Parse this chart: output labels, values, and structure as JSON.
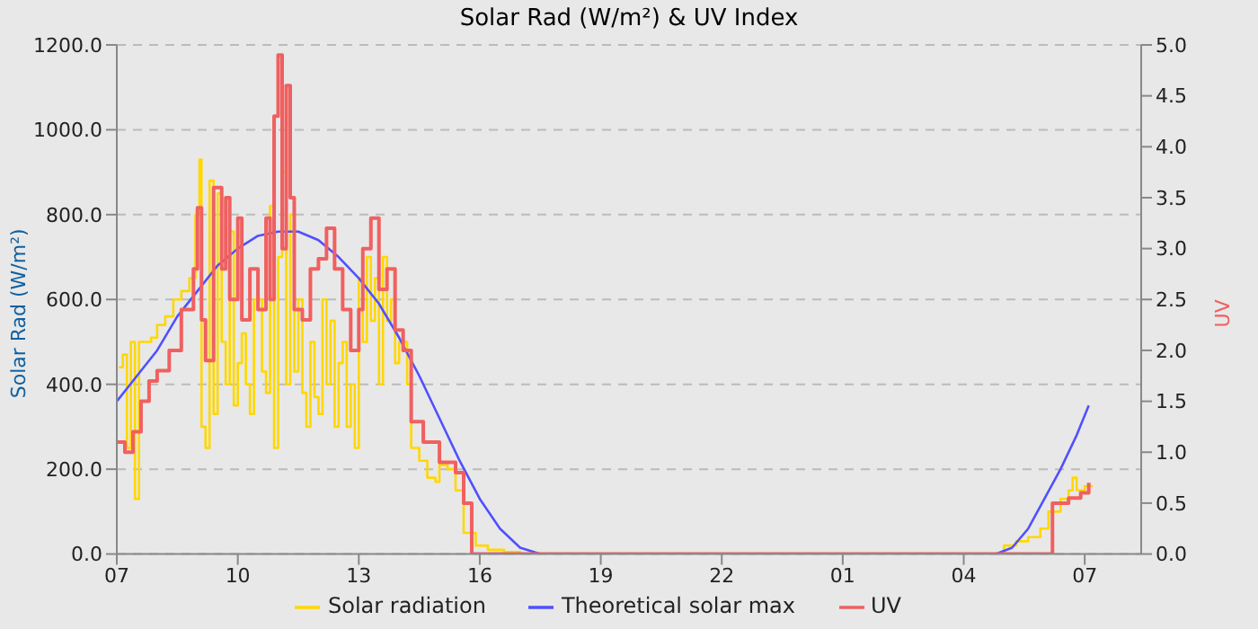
{
  "chart_data": {
    "type": "line",
    "title": "Solar Rad (W/m²) &  UV Index",
    "ylabel": "Solar Rad (W/m²)",
    "y2label": "UV",
    "xlim": [
      "--01-01T07:00",
      "--01-02T08:24"
    ],
    "xticks": [
      {
        "value": "--01-01T07:00",
        "label": "07"
      },
      {
        "value": "--01-01T10:00",
        "label": "10"
      },
      {
        "value": "--01-01T13:00",
        "label": "13"
      },
      {
        "value": "--01-01T16:00",
        "label": "16"
      },
      {
        "value": "--01-01T19:00",
        "label": "19"
      },
      {
        "value": "--01-01T22:00",
        "label": "22"
      },
      {
        "value": "--01-02T01:00",
        "label": "01"
      },
      {
        "value": "--01-02T04:00",
        "label": "04"
      },
      {
        "value": "--01-02T07:00",
        "label": "07"
      }
    ],
    "ylim": [
      0,
      1200
    ],
    "yticks": [
      {
        "value": 0,
        "label": "0.0"
      },
      {
        "value": 200,
        "label": "200.0"
      },
      {
        "value": 400,
        "label": "400.0"
      },
      {
        "value": 600,
        "label": "600.0"
      },
      {
        "value": 800,
        "label": "800.0"
      },
      {
        "value": 1000,
        "label": "1000.0"
      },
      {
        "value": 1200,
        "label": "1200.0"
      }
    ],
    "y2lim": [
      0,
      5
    ],
    "y2ticks": [
      {
        "value": 0,
        "label": "0.0"
      },
      {
        "value": 0.5,
        "label": "0.5"
      },
      {
        "value": 1,
        "label": "1.0"
      },
      {
        "value": 1.5,
        "label": "1.5"
      },
      {
        "value": 2,
        "label": "2.0"
      },
      {
        "value": 2.5,
        "label": "2.5"
      },
      {
        "value": 3,
        "label": "3.0"
      },
      {
        "value": 3.5,
        "label": "3.5"
      },
      {
        "value": 4,
        "label": "4.0"
      },
      {
        "value": 4.5,
        "label": "4.5"
      },
      {
        "value": 5,
        "label": "5.0"
      }
    ],
    "grid": true,
    "legend": "bottom",
    "marker": "none",
    "series": [
      {
        "name": "Solar radiation",
        "type": "step",
        "color": "#ffd700",
        "x": [
          "--01-01T07:03",
          "--01-01T07:09",
          "--01-01T07:15",
          "--01-01T07:21",
          "--01-01T07:27",
          "--01-01T07:33",
          "--01-01T07:42",
          "--01-01T07:51",
          "--01-01T08:00",
          "--01-01T08:12",
          "--01-01T08:24",
          "--01-01T08:36",
          "--01-01T08:48",
          "--01-01T08:57",
          "--01-01T09:03",
          "--01-01T09:06",
          "--01-01T09:12",
          "--01-01T09:18",
          "--01-01T09:24",
          "--01-01T09:30",
          "--01-01T09:36",
          "--01-01T09:42",
          "--01-01T09:48",
          "--01-01T09:54",
          "--01-01T10:00",
          "--01-01T10:06",
          "--01-01T10:12",
          "--01-01T10:18",
          "--01-01T10:24",
          "--01-01T10:30",
          "--01-01T10:36",
          "--01-01T10:42",
          "--01-01T10:48",
          "--01-01T10:54",
          "--01-01T11:00",
          "--01-01T11:06",
          "--01-01T11:12",
          "--01-01T11:18",
          "--01-01T11:24",
          "--01-01T11:30",
          "--01-01T11:36",
          "--01-01T11:42",
          "--01-01T11:48",
          "--01-01T11:54",
          "--01-01T12:00",
          "--01-01T12:06",
          "--01-01T12:12",
          "--01-01T12:18",
          "--01-01T12:24",
          "--01-01T12:30",
          "--01-01T12:36",
          "--01-01T12:42",
          "--01-01T12:48",
          "--01-01T12:54",
          "--01-01T13:00",
          "--01-01T13:06",
          "--01-01T13:12",
          "--01-01T13:18",
          "--01-01T13:24",
          "--01-01T13:30",
          "--01-01T13:36",
          "--01-01T13:42",
          "--01-01T13:48",
          "--01-01T13:54",
          "--01-01T14:00",
          "--01-01T14:12",
          "--01-01T14:18",
          "--01-01T14:30",
          "--01-01T14:42",
          "--01-01T14:54",
          "--01-01T15:00",
          "--01-01T15:12",
          "--01-01T15:24",
          "--01-01T15:36",
          "--01-01T15:54",
          "--01-01T16:12",
          "--01-01T16:36",
          "--01-01T17:00",
          "--01-02T04:48",
          "--01-02T05:00",
          "--01-02T05:18",
          "--01-02T05:36",
          "--01-02T05:54",
          "--01-02T06:06",
          "--01-02T06:24",
          "--01-02T06:36",
          "--01-02T06:42",
          "--01-02T06:48",
          "--01-02T07:00",
          "--01-02T07:12"
        ],
        "values": [
          440,
          470,
          250,
          500,
          130,
          500,
          500,
          510,
          540,
          560,
          600,
          620,
          650,
          800,
          930,
          300,
          250,
          880,
          330,
          850,
          500,
          400,
          760,
          350,
          450,
          520,
          400,
          330,
          600,
          600,
          430,
          380,
          820,
          250,
          700,
          900,
          400,
          800,
          430,
          600,
          380,
          300,
          500,
          370,
          330,
          600,
          400,
          550,
          300,
          450,
          500,
          300,
          400,
          250,
          650,
          500,
          700,
          550,
          650,
          400,
          700,
          550,
          600,
          450,
          500,
          400,
          250,
          220,
          180,
          170,
          210,
          200,
          150,
          50,
          20,
          10,
          5,
          0,
          0,
          20,
          30,
          40,
          60,
          100,
          130,
          150,
          180,
          150,
          160,
          160
        ]
      },
      {
        "name": "Theoretical solar max",
        "type": "line",
        "color": "#5050ff",
        "x": [
          "--01-01T07:00",
          "--01-01T07:30",
          "--01-01T08:00",
          "--01-01T08:30",
          "--01-01T09:00",
          "--01-01T09:30",
          "--01-01T10:00",
          "--01-01T10:30",
          "--01-01T11:00",
          "--01-01T11:30",
          "--01-01T12:00",
          "--01-01T12:30",
          "--01-01T13:00",
          "--01-01T13:30",
          "--01-01T14:00",
          "--01-01T14:30",
          "--01-01T15:00",
          "--01-01T15:30",
          "--01-01T16:00",
          "--01-01T16:30",
          "--01-01T17:00",
          "--01-01T17:30",
          "--01-02T04:48",
          "--01-02T05:12",
          "--01-02T05:36",
          "--01-02T06:00",
          "--01-02T06:24",
          "--01-02T06:48",
          "--01-02T07:06"
        ],
        "values": [
          360,
          420,
          480,
          560,
          620,
          680,
          720,
          750,
          760,
          760,
          740,
          700,
          650,
          590,
          510,
          420,
          320,
          220,
          130,
          60,
          15,
          0,
          0,
          15,
          60,
          130,
          200,
          280,
          350
        ]
      },
      {
        "name": "UV",
        "type": "step",
        "axis": "y2",
        "color": "#f06060",
        "x": [
          "--01-01T07:00",
          "--01-01T07:12",
          "--01-01T07:24",
          "--01-01T07:36",
          "--01-01T07:48",
          "--01-01T08:00",
          "--01-01T08:18",
          "--01-01T08:36",
          "--01-01T08:54",
          "--01-01T09:00",
          "--01-01T09:06",
          "--01-01T09:12",
          "--01-01T09:24",
          "--01-01T09:36",
          "--01-01T09:42",
          "--01-01T09:48",
          "--01-01T10:00",
          "--01-01T10:06",
          "--01-01T10:18",
          "--01-01T10:30",
          "--01-01T10:42",
          "--01-01T10:48",
          "--01-01T10:54",
          "--01-01T11:00",
          "--01-01T11:06",
          "--01-01T11:12",
          "--01-01T11:18",
          "--01-01T11:24",
          "--01-01T11:36",
          "--01-01T11:48",
          "--01-01T12:00",
          "--01-01T12:12",
          "--01-01T12:24",
          "--01-01T12:36",
          "--01-01T12:48",
          "--01-01T13:00",
          "--01-01T13:06",
          "--01-01T13:18",
          "--01-01T13:30",
          "--01-01T13:42",
          "--01-01T13:54",
          "--01-01T14:06",
          "--01-01T14:18",
          "--01-01T14:36",
          "--01-01T15:00",
          "--01-01T15:24",
          "--01-01T15:36",
          "--01-01T15:48",
          "--01-02T06:06",
          "--01-02T06:12",
          "--01-02T06:36",
          "--01-02T06:54",
          "--01-02T07:06"
        ],
        "values": [
          1.1,
          1.0,
          1.2,
          1.5,
          1.7,
          1.8,
          2.0,
          2.4,
          2.8,
          3.4,
          2.3,
          1.9,
          3.6,
          2.8,
          3.5,
          2.5,
          3.3,
          2.3,
          2.8,
          2.4,
          3.3,
          2.5,
          4.3,
          4.9,
          3.0,
          4.6,
          3.5,
          2.4,
          2.3,
          2.8,
          2.9,
          3.2,
          2.8,
          2.4,
          2.0,
          2.4,
          3.0,
          3.3,
          2.6,
          2.8,
          2.2,
          2.0,
          1.3,
          1.1,
          0.9,
          0.8,
          0.5,
          0,
          0,
          0.5,
          0.55,
          0.6,
          0.7
        ]
      }
    ]
  }
}
